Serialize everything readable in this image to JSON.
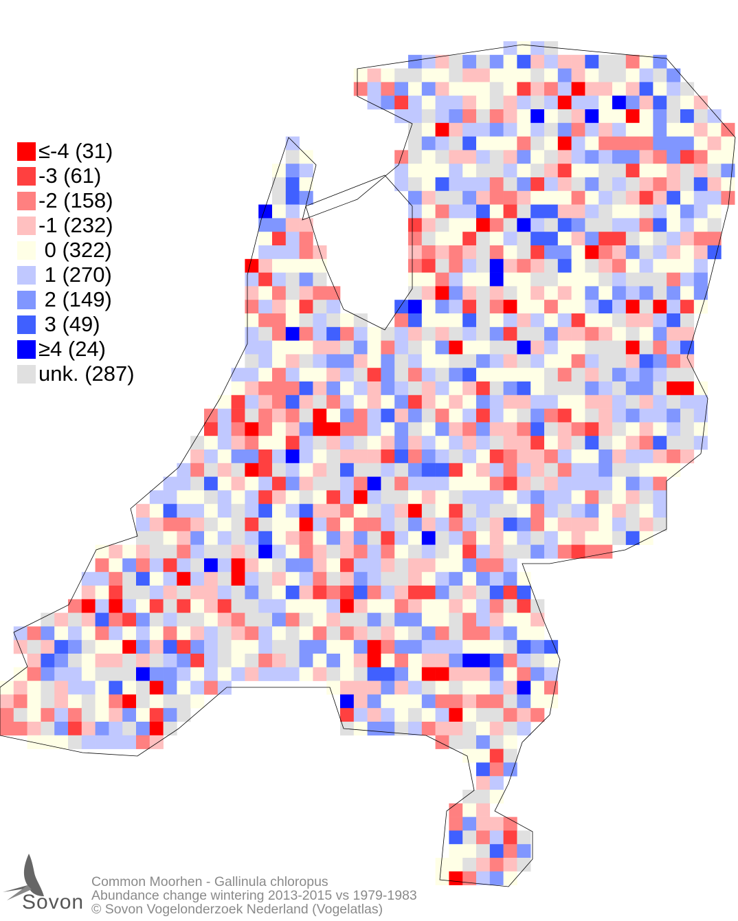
{
  "legend": {
    "items": [
      {
        "label": "≤-4 (31)",
        "value": "≤-4",
        "count": 31,
        "color": "#ff0000"
      },
      {
        "label": "-3 (61)",
        "value": "-3",
        "count": 61,
        "color": "#ff4040"
      },
      {
        "label": "-2 (158)",
        "value": "-2",
        "count": 158,
        "color": "#ff8080"
      },
      {
        "label": "-1 (232)",
        "value": "-1",
        "count": 232,
        "color": "#ffc0c0"
      },
      {
        "label": " 0 (322)",
        "value": "0",
        "count": 322,
        "color": "#ffffe6"
      },
      {
        "label": " 1 (270)",
        "value": "1",
        "count": 270,
        "color": "#c0c8ff"
      },
      {
        "label": " 2 (149)",
        "value": "2",
        "count": 149,
        "color": "#8096ff"
      },
      {
        "label": " 3 (49)",
        "value": "3",
        "count": 49,
        "color": "#4060ff"
      },
      {
        "label": "≥4 (24)",
        "value": "≥4",
        "count": 24,
        "color": "#0000ff"
      },
      {
        "label": "unk. (287)",
        "value": "unk.",
        "count": 287,
        "color": "#e0e0e0"
      }
    ]
  },
  "footer": {
    "species": "Common Moorhen - Gallinula chloropus",
    "subtitle": "Abundance change wintering  2013-2015 vs 1979-1983",
    "copyright": "© Sovon Vogelonderzoek Nederland (Vogelatlas)"
  },
  "logo": {
    "text": "Sovon"
  }
}
